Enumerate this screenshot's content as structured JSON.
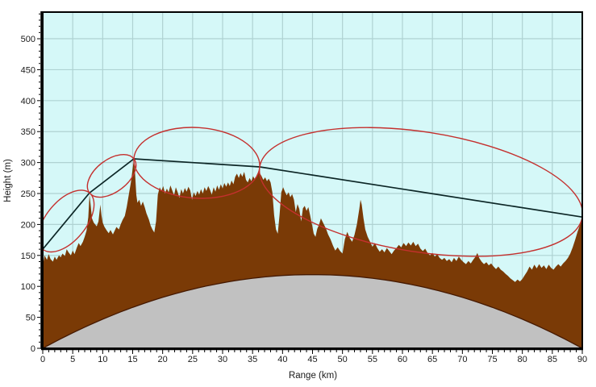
{
  "chart_data": {
    "type": "area",
    "title": "",
    "xlabel": "Range (km)",
    "ylabel": "Height (m)",
    "xlim": [
      0,
      90
    ],
    "ylim": [
      0,
      543
    ],
    "x_major_tick": 5,
    "x_minor_tick": 1,
    "y_major_tick": 50,
    "y_minor_tick": 10,
    "x_tick_labels": [
      0,
      5,
      10,
      15,
      20,
      25,
      30,
      35,
      40,
      45,
      50,
      55,
      60,
      65,
      70,
      75,
      80,
      85,
      90
    ],
    "y_tick_labels": [
      0,
      50,
      100,
      150,
      200,
      250,
      300,
      350,
      400,
      450,
      500
    ],
    "grid": true,
    "legend": "none",
    "colors": {
      "plot_bg": "#D5F8F8",
      "grid": "#AFD2D2",
      "terrain": "#7A3A06",
      "terrain_edge": "#451900",
      "earth": "#C1C1C1",
      "los_line": "#0C2626",
      "fresnel": "#C4302E",
      "frame": "#000000"
    },
    "series": [
      {
        "name": "terrain-elevation-profile",
        "type": "area",
        "color": "#7A3A06",
        "points": [
          [
            0,
            132
          ],
          [
            0.3,
            150
          ],
          [
            0.7,
            143
          ],
          [
            1,
            152
          ],
          [
            1.3,
            144
          ],
          [
            1.7,
            140
          ],
          [
            2,
            148
          ],
          [
            2.3,
            143
          ],
          [
            2.7,
            150
          ],
          [
            3,
            147
          ],
          [
            3.3,
            153
          ],
          [
            3.7,
            149
          ],
          [
            4,
            160
          ],
          [
            4.3,
            155
          ],
          [
            4.7,
            150
          ],
          [
            5,
            158
          ],
          [
            5.3,
            152
          ],
          [
            5.7,
            163
          ],
          [
            6,
            170
          ],
          [
            6.3,
            165
          ],
          [
            6.7,
            172
          ],
          [
            7,
            180
          ],
          [
            7.3,
            190
          ],
          [
            7.6,
            212
          ],
          [
            7.8,
            248
          ],
          [
            8,
            230
          ],
          [
            8.2,
            210
          ],
          [
            8.5,
            203
          ],
          [
            9,
            197
          ],
          [
            9.3,
            205
          ],
          [
            9.6,
            232
          ],
          [
            9.8,
            215
          ],
          [
            10,
            203
          ],
          [
            10.3,
            196
          ],
          [
            10.7,
            190
          ],
          [
            11,
            186
          ],
          [
            11.3,
            191
          ],
          [
            11.7,
            184
          ],
          [
            12,
            190
          ],
          [
            12.3,
            196
          ],
          [
            12.7,
            192
          ],
          [
            13,
            200
          ],
          [
            13.3,
            207
          ],
          [
            13.7,
            214
          ],
          [
            14,
            228
          ],
          [
            14.3,
            245
          ],
          [
            14.7,
            268
          ],
          [
            15,
            290
          ],
          [
            15.2,
            305
          ],
          [
            15.4,
            282
          ],
          [
            15.6,
            248
          ],
          [
            15.8,
            235
          ],
          [
            16.1,
            240
          ],
          [
            16.4,
            230
          ],
          [
            16.7,
            237
          ],
          [
            17,
            228
          ],
          [
            17.3,
            218
          ],
          [
            17.7,
            208
          ],
          [
            18,
            198
          ],
          [
            18.3,
            192
          ],
          [
            18.6,
            187
          ],
          [
            18.9,
            205
          ],
          [
            19.2,
            248
          ],
          [
            19.5,
            260
          ],
          [
            19.8,
            254
          ],
          [
            20.1,
            262
          ],
          [
            20.4,
            250
          ],
          [
            20.7,
            258
          ],
          [
            21,
            252
          ],
          [
            21.3,
            263
          ],
          [
            21.6,
            255
          ],
          [
            21.9,
            247
          ],
          [
            22.2,
            260
          ],
          [
            22.5,
            252
          ],
          [
            22.8,
            243
          ],
          [
            23.1,
            257
          ],
          [
            23.4,
            250
          ],
          [
            23.7,
            259
          ],
          [
            24,
            253
          ],
          [
            24.3,
            261
          ],
          [
            24.6,
            255
          ],
          [
            24.9,
            240
          ],
          [
            25.2,
            252
          ],
          [
            25.5,
            246
          ],
          [
            25.8,
            254
          ],
          [
            26.1,
            248
          ],
          [
            26.4,
            257
          ],
          [
            26.7,
            250
          ],
          [
            27,
            260
          ],
          [
            27.3,
            254
          ],
          [
            27.6,
            262
          ],
          [
            27.9,
            256
          ],
          [
            28.2,
            248
          ],
          [
            28.5,
            260
          ],
          [
            28.8,
            253
          ],
          [
            29.1,
            263
          ],
          [
            29.4,
            256
          ],
          [
            29.7,
            265
          ],
          [
            30,
            258
          ],
          [
            30.3,
            267
          ],
          [
            30.6,
            261
          ],
          [
            30.9,
            268
          ],
          [
            31.2,
            262
          ],
          [
            31.5,
            271
          ],
          [
            31.8,
            265
          ],
          [
            32.1,
            277
          ],
          [
            32.4,
            282
          ],
          [
            32.7,
            275
          ],
          [
            33,
            283
          ],
          [
            33.3,
            277
          ],
          [
            33.6,
            285
          ],
          [
            33.9,
            272
          ],
          [
            34.2,
            268
          ],
          [
            34.5,
            275
          ],
          [
            34.8,
            270
          ],
          [
            35.1,
            278
          ],
          [
            35.4,
            272
          ],
          [
            35.7,
            280
          ],
          [
            36,
            286
          ],
          [
            36.2,
            283
          ],
          [
            36.5,
            278
          ],
          [
            36.8,
            272
          ],
          [
            37.1,
            276
          ],
          [
            37.4,
            270
          ],
          [
            37.7,
            274
          ],
          [
            38,
            268
          ],
          [
            38.3,
            252
          ],
          [
            38.6,
            215
          ],
          [
            38.9,
            192
          ],
          [
            39.2,
            185
          ],
          [
            39.5,
            215
          ],
          [
            39.8,
            252
          ],
          [
            40.1,
            260
          ],
          [
            40.4,
            253
          ],
          [
            40.7,
            247
          ],
          [
            41,
            252
          ],
          [
            41.3,
            244
          ],
          [
            41.6,
            249
          ],
          [
            41.9,
            240
          ],
          [
            42.2,
            220
          ],
          [
            42.5,
            233
          ],
          [
            42.8,
            225
          ],
          [
            43.1,
            205
          ],
          [
            43.4,
            226
          ],
          [
            43.7,
            230
          ],
          [
            44,
            222
          ],
          [
            44.3,
            228
          ],
          [
            44.6,
            215
          ],
          [
            44.9,
            200
          ],
          [
            45.2,
            185
          ],
          [
            45.5,
            180
          ],
          [
            45.8,
            193
          ],
          [
            46.1,
            200
          ],
          [
            46.4,
            210
          ],
          [
            46.7,
            204
          ],
          [
            47,
            198
          ],
          [
            47.3,
            192
          ],
          [
            47.6,
            184
          ],
          [
            48,
            176
          ],
          [
            48.4,
            166
          ],
          [
            48.8,
            158
          ],
          [
            49.2,
            163
          ],
          [
            49.6,
            157
          ],
          [
            50,
            153
          ],
          [
            50.4,
            176
          ],
          [
            50.8,
            188
          ],
          [
            51.2,
            178
          ],
          [
            51.6,
            172
          ],
          [
            52,
            183
          ],
          [
            52.4,
            200
          ],
          [
            52.8,
            225
          ],
          [
            53,
            240
          ],
          [
            53.2,
            232
          ],
          [
            53.5,
            210
          ],
          [
            53.8,
            192
          ],
          [
            54.2,
            180
          ],
          [
            54.6,
            172
          ],
          [
            55,
            164
          ],
          [
            55.4,
            170
          ],
          [
            55.8,
            162
          ],
          [
            56.2,
            156
          ],
          [
            56.6,
            160
          ],
          [
            57,
            155
          ],
          [
            57.4,
            162
          ],
          [
            57.8,
            157
          ],
          [
            58.2,
            152
          ],
          [
            58.6,
            158
          ],
          [
            59,
            162
          ],
          [
            59.4,
            167
          ],
          [
            59.8,
            163
          ],
          [
            60.2,
            170
          ],
          [
            60.6,
            165
          ],
          [
            61,
            171
          ],
          [
            61.4,
            166
          ],
          [
            61.8,
            172
          ],
          [
            62.2,
            165
          ],
          [
            62.6,
            169
          ],
          [
            63,
            161
          ],
          [
            63.4,
            157
          ],
          [
            63.8,
            161
          ],
          [
            64.2,
            154
          ],
          [
            64.6,
            150
          ],
          [
            65,
            154
          ],
          [
            65.4,
            148
          ],
          [
            65.8,
            152
          ],
          [
            66.2,
            146
          ],
          [
            66.6,
            143
          ],
          [
            67,
            146
          ],
          [
            67.4,
            141
          ],
          [
            67.8,
            144
          ],
          [
            68.2,
            139
          ],
          [
            68.6,
            146
          ],
          [
            69,
            141
          ],
          [
            69.4,
            148
          ],
          [
            69.8,
            143
          ],
          [
            70.2,
            139
          ],
          [
            70.6,
            136
          ],
          [
            71,
            141
          ],
          [
            71.4,
            137
          ],
          [
            71.8,
            143
          ],
          [
            72.2,
            148
          ],
          [
            72.5,
            154
          ],
          [
            72.8,
            146
          ],
          [
            73.2,
            140
          ],
          [
            73.6,
            136
          ],
          [
            74,
            139
          ],
          [
            74.4,
            134
          ],
          [
            74.8,
            137
          ],
          [
            75.2,
            132
          ],
          [
            75.6,
            128
          ],
          [
            76,
            132
          ],
          [
            76.4,
            127
          ],
          [
            76.8,
            124
          ],
          [
            77.2,
            120
          ],
          [
            77.6,
            117
          ],
          [
            78,
            113
          ],
          [
            78.4,
            110
          ],
          [
            78.8,
            107
          ],
          [
            79.2,
            111
          ],
          [
            79.6,
            108
          ],
          [
            80,
            112
          ],
          [
            80.4,
            118
          ],
          [
            80.8,
            124
          ],
          [
            81.2,
            132
          ],
          [
            81.6,
            127
          ],
          [
            82,
            135
          ],
          [
            82.4,
            129
          ],
          [
            82.8,
            136
          ],
          [
            83.2,
            130
          ],
          [
            83.6,
            134
          ],
          [
            84,
            128
          ],
          [
            84.4,
            135
          ],
          [
            84.8,
            130
          ],
          [
            85.2,
            127
          ],
          [
            85.6,
            132
          ],
          [
            86,
            136
          ],
          [
            86.4,
            132
          ],
          [
            86.8,
            137
          ],
          [
            87.2,
            141
          ],
          [
            87.6,
            146
          ],
          [
            88,
            153
          ],
          [
            88.4,
            163
          ],
          [
            88.8,
            175
          ],
          [
            89.2,
            188
          ],
          [
            89.6,
            199
          ],
          [
            90,
            208
          ]
        ]
      },
      {
        "name": "earth-curvature-bulge",
        "type": "area",
        "color": "#C1C1C1",
        "shape": "parabola",
        "span_km": 90,
        "max_bulge_m": 119
      },
      {
        "name": "line-of-sight-path",
        "type": "line",
        "color": "#0C2626",
        "points": [
          [
            0,
            160
          ],
          [
            7.8,
            251
          ],
          [
            15.2,
            306
          ],
          [
            36.2,
            293
          ],
          [
            90,
            212
          ]
        ]
      }
    ],
    "fresnel_zones": [
      {
        "from_km": 0,
        "from_m": 160,
        "to_km": 7.8,
        "to_m": 251,
        "clearance_m": 32
      },
      {
        "from_km": 7.8,
        "from_m": 251,
        "to_km": 15.2,
        "to_m": 306,
        "clearance_m": 26
      },
      {
        "from_km": 15.2,
        "from_m": 306,
        "to_km": 36.2,
        "to_m": 293,
        "clearance_m": 57
      },
      {
        "from_km": 36.2,
        "from_m": 293,
        "to_km": 90,
        "to_m": 212,
        "clearance_m": 97
      }
    ]
  }
}
